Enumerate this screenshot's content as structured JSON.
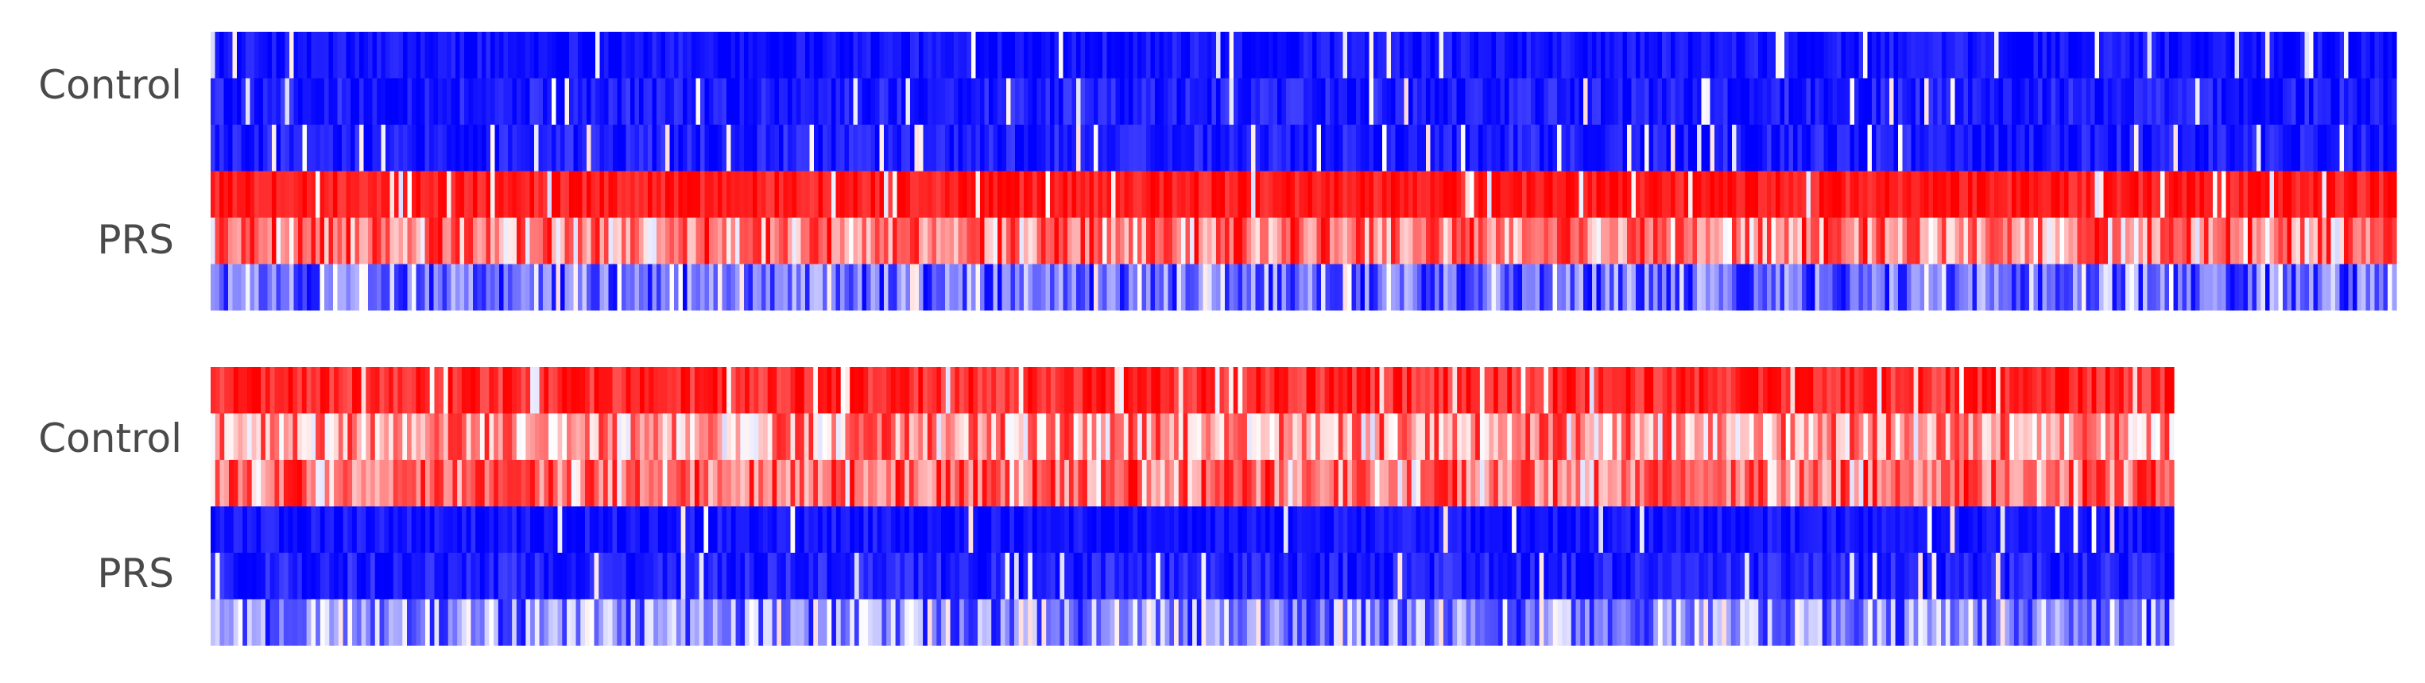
{
  "chart_data": [
    {
      "type": "heatmap",
      "row_groups": [
        {
          "label": "Control",
          "rows": 3
        },
        {
          "label": "PRS",
          "rows": 3
        }
      ],
      "columns": 500,
      "value_range": [
        -1,
        1
      ],
      "colormap": {
        "low": "#0000ff",
        "mid": "#ffffff",
        "high": "#ff0000"
      },
      "row_profiles": [
        {
          "mean": -0.93,
          "spread": 0.12,
          "white_frac": 0.05
        },
        {
          "mean": -0.9,
          "spread": 0.15,
          "white_frac": 0.06
        },
        {
          "mean": -0.9,
          "spread": 0.15,
          "white_frac": 0.06
        },
        {
          "mean": 0.9,
          "spread": 0.15,
          "white_frac": 0.05
        },
        {
          "mean": 0.55,
          "spread": 0.45,
          "white_frac": 0.1
        },
        {
          "mean": -0.6,
          "spread": 0.4,
          "white_frac": 0.08
        }
      ]
    },
    {
      "type": "heatmap",
      "row_groups": [
        {
          "label": "Control",
          "rows": 3
        },
        {
          "label": "PRS",
          "rows": 3
        }
      ],
      "columns": 430,
      "value_range": [
        -1,
        1
      ],
      "colormap": {
        "low": "#0000ff",
        "mid": "#ffffff",
        "high": "#ff0000"
      },
      "row_profiles": [
        {
          "mean": 0.85,
          "spread": 0.2,
          "white_frac": 0.06
        },
        {
          "mean": 0.4,
          "spread": 0.5,
          "white_frac": 0.12
        },
        {
          "mean": 0.6,
          "spread": 0.4,
          "white_frac": 0.1
        },
        {
          "mean": -0.93,
          "spread": 0.12,
          "white_frac": 0.04
        },
        {
          "mean": -0.88,
          "spread": 0.15,
          "white_frac": 0.05
        },
        {
          "mean": -0.5,
          "spread": 0.45,
          "white_frac": 0.12
        }
      ]
    }
  ]
}
